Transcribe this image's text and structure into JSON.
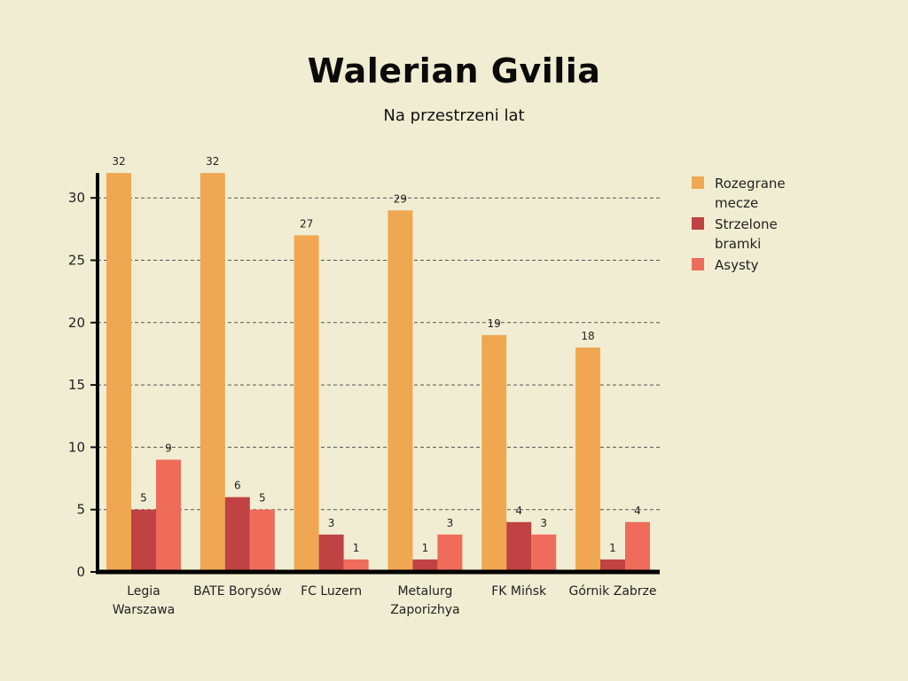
{
  "chart_data": {
    "type": "bar",
    "title": "Walerian Gvilia",
    "subtitle": "Na przestrzeni lat",
    "xlabel": "",
    "ylabel": "",
    "ylim": [
      0,
      32
    ],
    "yticks": [
      0,
      5,
      10,
      15,
      20,
      25,
      30
    ],
    "grid": true,
    "legend_position": "top-right",
    "categories": [
      "Legia Warszawa",
      "BATE Borysów",
      "FC Luzern",
      "Metalurg Zaporizhya",
      "FK Mińsk",
      "Górnik Zabrze"
    ],
    "category_lines": [
      [
        "Legia",
        "Warszawa"
      ],
      [
        "BATE Borysów"
      ],
      [
        "FC Luzern"
      ],
      [
        "Metalurg",
        "Zaporizhya"
      ],
      [
        "FK Mińsk"
      ],
      [
        "Górnik Zabrze"
      ]
    ],
    "series": [
      {
        "name": "Rozegrane mecze",
        "color": "#efa851",
        "values": [
          32,
          32,
          27,
          29,
          19,
          18
        ]
      },
      {
        "name": "Strzelone bramki",
        "color": "#c04242",
        "values": [
          5,
          6,
          3,
          1,
          4,
          1
        ]
      },
      {
        "name": "Asysty",
        "color": "#ef6b5a",
        "values": [
          9,
          5,
          1,
          3,
          3,
          4
        ]
      }
    ]
  }
}
